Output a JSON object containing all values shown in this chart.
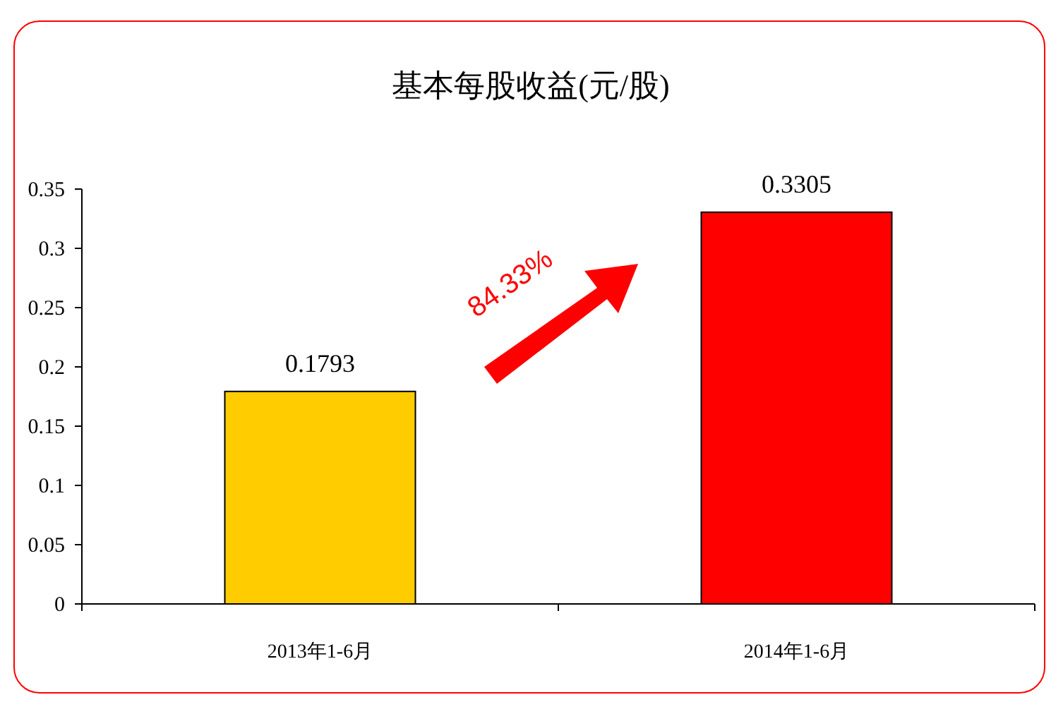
{
  "chart_data": {
    "type": "bar",
    "title": "基本每股收益(元/股)",
    "categories": [
      "2013年1-6月",
      "2014年1-6月"
    ],
    "values": [
      0.1793,
      0.3305
    ],
    "colors": [
      "#ffcc00",
      "#ff0000"
    ],
    "ylim": [
      0,
      0.35
    ],
    "yticks": [
      0,
      0.05,
      0.1,
      0.15,
      0.2,
      0.25,
      0.3,
      0.35
    ],
    "data_labels": true,
    "annotations": [
      "84.33%"
    ]
  }
}
